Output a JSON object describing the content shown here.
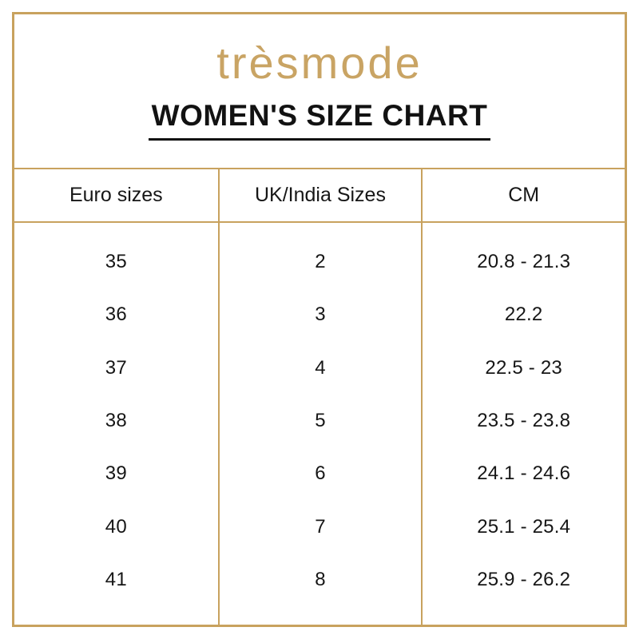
{
  "brand": {
    "logo_text": "trèsmode",
    "logo_color": "#C9A464"
  },
  "page": {
    "title": "WOMEN'S SIZE CHART"
  },
  "colors": {
    "border_gold": "#C8A25E",
    "text_black": "#1B1B1D",
    "background": "#FFFFFF"
  },
  "chart_data": {
    "type": "table",
    "title": "WOMEN'S SIZE CHART",
    "columns": [
      "Euro sizes",
      "UK/India Sizes",
      "CM"
    ],
    "rows": [
      [
        "35",
        "2",
        "20.8 - 21.3"
      ],
      [
        "36",
        "3",
        "22.2"
      ],
      [
        "37",
        "4",
        "22.5 - 23"
      ],
      [
        "38",
        "5",
        "23.5 - 23.8"
      ],
      [
        "39",
        "6",
        "24.1 - 24.6"
      ],
      [
        "40",
        "7",
        "25.1 - 25.4"
      ],
      [
        "41",
        "8",
        "25.9 - 26.2"
      ]
    ],
    "layout_hints": {
      "grid": "outer gold frame, gold header rules and column dividers, no horizontal rules between data rows",
      "alignment": "all cells centered"
    }
  }
}
